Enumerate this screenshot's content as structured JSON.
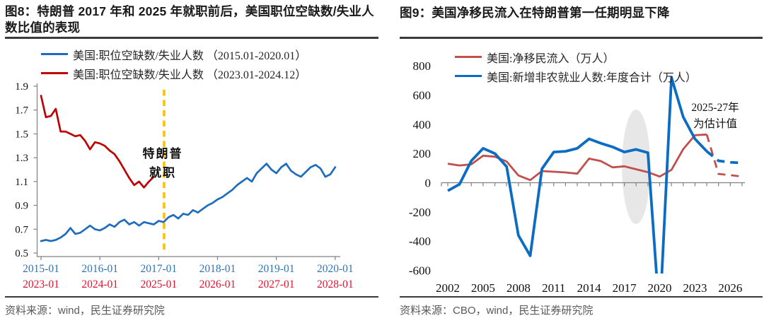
{
  "chart_data": [
    {
      "type": "line",
      "title": "图8：特朗普 2017 年和 2025 年就职前后，美国职位空缺数/失业人数比值的表现",
      "source": "资料来源：wind，民生证券研究院",
      "ylim": [
        0.5,
        1.9
      ],
      "yticks": [
        "1.9",
        "1.7",
        "1.5",
        "1.3",
        "1.1",
        "0.9",
        "0.7",
        "0.5"
      ],
      "grid": false,
      "legend_position": "top-left",
      "x_tick_rows": [
        {
          "color": "#2e74b5",
          "labels": [
            "2015-01",
            "2016-01",
            "2017-01",
            "2018-01",
            "2019-01",
            "2020-01"
          ]
        },
        {
          "color": "#e8112d",
          "labels": [
            "2023-01",
            "2024-01",
            "2025-01",
            "2026-01",
            "2027-01",
            "2028-01"
          ]
        }
      ],
      "series": [
        {
          "name": "美国:职位空缺数/失业人数 （2015.01-2020.01）",
          "color": "#1e6cbd",
          "x_unit": "month",
          "start": "2015-01",
          "values": [
            0.6,
            0.61,
            0.6,
            0.61,
            0.63,
            0.66,
            0.71,
            0.66,
            0.67,
            0.7,
            0.73,
            0.7,
            0.69,
            0.71,
            0.74,
            0.72,
            0.76,
            0.78,
            0.74,
            0.76,
            0.73,
            0.76,
            0.75,
            0.74,
            0.77,
            0.76,
            0.8,
            0.82,
            0.79,
            0.83,
            0.82,
            0.86,
            0.84,
            0.87,
            0.9,
            0.92,
            0.95,
            0.97,
            1.0,
            1.03,
            1.07,
            1.1,
            1.13,
            1.1,
            1.17,
            1.21,
            1.25,
            1.2,
            1.17,
            1.22,
            1.25,
            1.19,
            1.16,
            1.14,
            1.18,
            1.22,
            1.24,
            1.21,
            1.14,
            1.16,
            1.22
          ]
        },
        {
          "name": "美国:职位空缺数/失业人数 （2023.01-2024.12）",
          "color": "#c00000",
          "x_unit": "month",
          "start": "2023-01",
          "values": [
            1.82,
            1.64,
            1.65,
            1.71,
            1.52,
            1.52,
            1.5,
            1.48,
            1.49,
            1.44,
            1.37,
            1.43,
            1.42,
            1.4,
            1.36,
            1.33,
            1.27,
            1.2,
            1.13,
            1.07,
            1.1,
            1.05,
            1.1,
            1.14
          ]
        }
      ],
      "event_line": {
        "color": "#ffc000",
        "at_label": "2017-01 / 2025-01",
        "annotation_lines": [
          "特朗普",
          "就职"
        ]
      }
    },
    {
      "type": "line",
      "title": "图9：美国净移民流入在特朗普第一任期明显下降",
      "source": "资料来源：CBO，wind，民生证券研究院",
      "ylim": [
        -600,
        800
      ],
      "yticks": [
        "800",
        "600",
        "400",
        "200",
        "0",
        "-200",
        "-400",
        "-600"
      ],
      "grid": false,
      "legend_position": "top",
      "x_start_year": 2002,
      "x_end_year": 2027,
      "xticklabels": [
        "2002",
        "2005",
        "2008",
        "2011",
        "2014",
        "2017",
        "2020",
        "2023",
        "2026"
      ],
      "annotation_lines": [
        "2025-27年",
        "为估计值"
      ],
      "estimate_from_index": 22,
      "highlight_ellipse": {
        "center_year": 2018,
        "color": "#d9d9d9"
      },
      "series": [
        {
          "name": "美国:净移民流入（万人）",
          "color": "#c0504d",
          "x_unit": "year",
          "start": 2002,
          "values": [
            130,
            118,
            126,
            185,
            178,
            145,
            50,
            18,
            80,
            75,
            70,
            62,
            165,
            148,
            105,
            112,
            92,
            72,
            42,
            88,
            230,
            325,
            330,
            60,
            52,
            42
          ]
        },
        {
          "name": "美国:新增非农就业人数:年度合计（万人）",
          "color": "#0b6cc4",
          "x_unit": "year",
          "start": 2002,
          "values": [
            -55,
            -10,
            150,
            235,
            200,
            110,
            -360,
            -500,
            95,
            210,
            215,
            235,
            300,
            270,
            245,
            210,
            228,
            205,
            -930,
            720,
            450,
            300,
            215,
            150,
            140,
            135
          ]
        }
      ]
    }
  ],
  "style": {
    "axis_color": "#808080",
    "rule_color": "#3a3a3a",
    "source_color": "#595959"
  }
}
